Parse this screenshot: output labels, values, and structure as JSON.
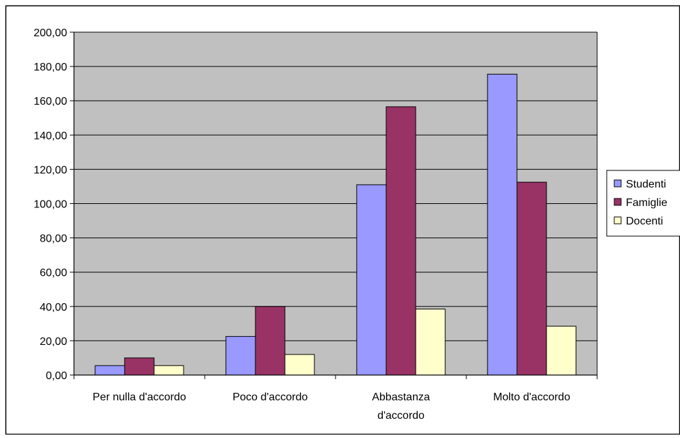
{
  "chart_data": {
    "type": "bar",
    "categories": [
      [
        "Per nulla d'accordo"
      ],
      [
        "Poco d'accordo"
      ],
      [
        "Abbastanza",
        "d'accordo"
      ],
      [
        "Molto d'accordo"
      ]
    ],
    "series": [
      {
        "name": "Studenti",
        "color": "#9999ff",
        "values": [
          5.5,
          22.5,
          111,
          175.5
        ]
      },
      {
        "name": "Famiglie",
        "color": "#993366",
        "values": [
          10,
          40,
          156.5,
          112.5
        ]
      },
      {
        "name": "Docenti",
        "color": "#ffffcc",
        "values": [
          5.5,
          12,
          38.5,
          28.5
        ]
      }
    ],
    "ylim": [
      0,
      200
    ],
    "yticks": [
      "0,00",
      "20,00",
      "40,00",
      "60,00",
      "80,00",
      "100,00",
      "120,00",
      "140,00",
      "160,00",
      "180,00",
      "200,00"
    ],
    "grid": true,
    "plot_background": "#c0c0c0",
    "legend": "right"
  }
}
